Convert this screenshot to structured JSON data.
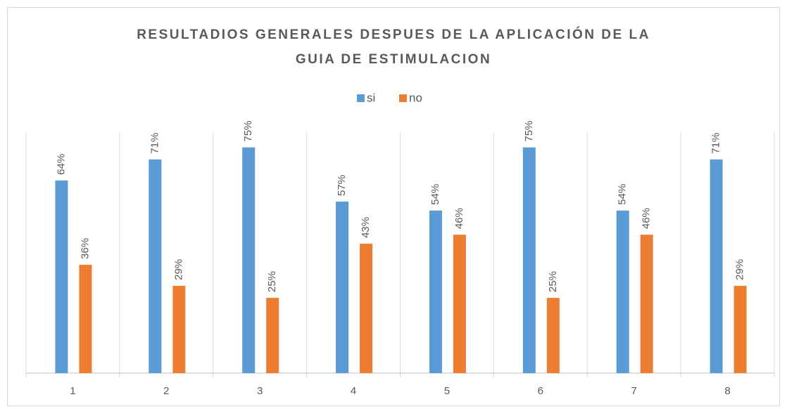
{
  "chart_data": {
    "type": "bar",
    "title": [
      "RESULTADIOS GENERALES DESPUES DE LA APLICACIÓN DE LA",
      "GUIA DE ESTIMULACION"
    ],
    "categories": [
      "1",
      "2",
      "3",
      "4",
      "5",
      "6",
      "7",
      "8"
    ],
    "series": [
      {
        "name": "si",
        "color": "#5b9bd5",
        "values": [
          64,
          71,
          75,
          57,
          54,
          75,
          54,
          71
        ],
        "value_labels": [
          "64%",
          "71%",
          "75%",
          "57%",
          "54%",
          "75%",
          "54%",
          "71%"
        ]
      },
      {
        "name": "no",
        "color": "#ed7d31",
        "values": [
          36,
          29,
          25,
          43,
          46,
          25,
          46,
          29
        ],
        "value_labels": [
          "36%",
          "29%",
          "25%",
          "43%",
          "46%",
          "25%",
          "46%",
          "29%"
        ]
      }
    ],
    "ylim": [
      0,
      80
    ],
    "legend": "top"
  }
}
